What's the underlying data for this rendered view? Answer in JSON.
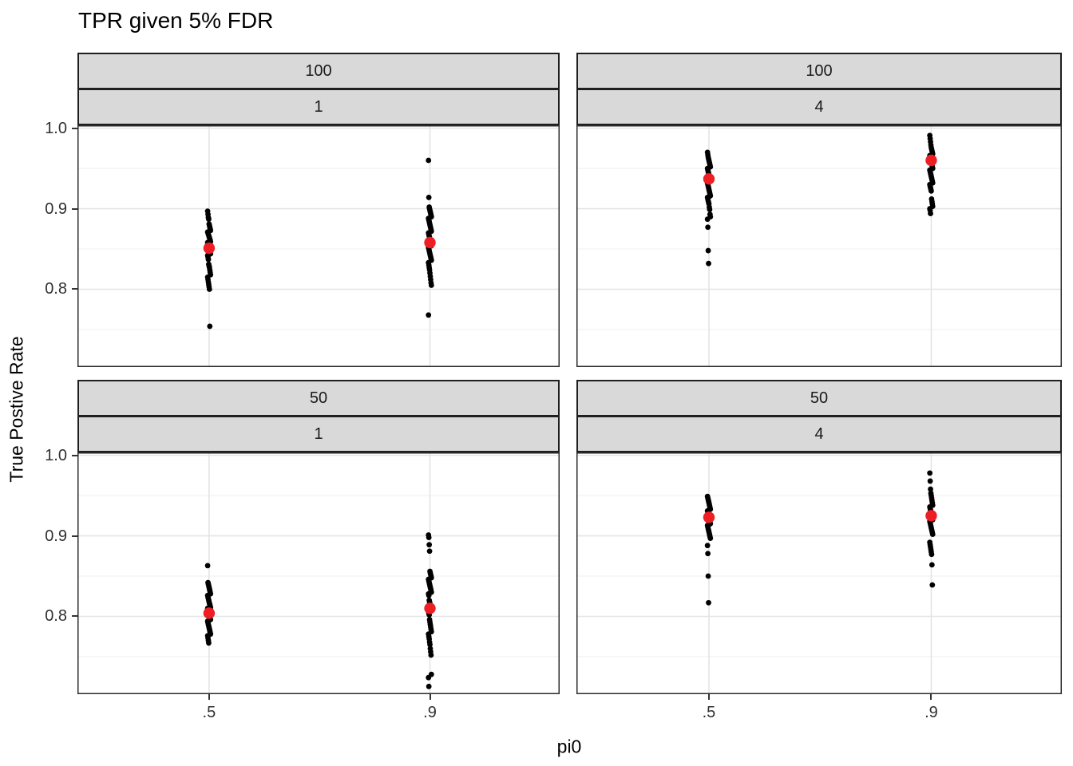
{
  "chart_data": {
    "type": "scatter",
    "title": "TPR given 5% FDR",
    "xlabel": "pi0",
    "ylabel": "True Postive Rate",
    "legend": "none",
    "grid": "horizontal major+minor, vertical major at categories",
    "point_color": "#000000",
    "mean_color": "#ed1f24",
    "strip_bg": "#d9d9d9",
    "panel_border": "#2b2b2b",
    "major_grid_color": "#e4e4e4",
    "minor_grid_color": "#f2f2f2",
    "x_axis": {
      "ticks": [
        ".5",
        ".9"
      ]
    },
    "y_axis": {
      "ticks": [
        "1.0",
        "0.9",
        "0.8"
      ],
      "tick_values": [
        1.0,
        0.9,
        0.8
      ],
      "minor_values": [
        0.95,
        0.85,
        0.75
      ],
      "ylim": [
        0.7034,
        1.0036
      ]
    },
    "facets": {
      "outer_levels": [
        "100",
        "50"
      ],
      "inner_levels": [
        "1",
        "4"
      ]
    },
    "panels": [
      {
        "facet_outer": "100",
        "facet_inner": "1",
        "row": 0,
        "col": 0,
        "means": {
          ".5": 0.851,
          ".9": 0.858
        },
        "points": {
          ".5": [
            0.897,
            0.893,
            0.889,
            0.887,
            0.881,
            0.879,
            0.877,
            0.875,
            0.873,
            0.871,
            0.87,
            0.868,
            0.867,
            0.865,
            0.864,
            0.862,
            0.861,
            0.859,
            0.858,
            0.856,
            0.855,
            0.853,
            0.852,
            0.85,
            0.848,
            0.846,
            0.844,
            0.842,
            0.84,
            0.837,
            0.831,
            0.829,
            0.827,
            0.824,
            0.821,
            0.818,
            0.815,
            0.812,
            0.809,
            0.806,
            0.803,
            0.8,
            0.754
          ],
          ".9": [
            0.96,
            0.914,
            0.902,
            0.9,
            0.898,
            0.896,
            0.894,
            0.892,
            0.89,
            0.888,
            0.886,
            0.884,
            0.882,
            0.88,
            0.878,
            0.876,
            0.874,
            0.872,
            0.87,
            0.868,
            0.866,
            0.864,
            0.862,
            0.86,
            0.858,
            0.856,
            0.854,
            0.852,
            0.85,
            0.848,
            0.846,
            0.844,
            0.842,
            0.84,
            0.838,
            0.836,
            0.833,
            0.83,
            0.827,
            0.824,
            0.82,
            0.816,
            0.812,
            0.808,
            0.805,
            0.768
          ]
        }
      },
      {
        "facet_outer": "100",
        "facet_inner": "4",
        "row": 0,
        "col": 1,
        "means": {
          ".5": 0.937,
          ".9": 0.96
        },
        "points": {
          ".5": [
            0.97,
            0.967,
            0.964,
            0.962,
            0.96,
            0.958,
            0.956,
            0.954,
            0.952,
            0.95,
            0.948,
            0.946,
            0.944,
            0.942,
            0.94,
            0.938,
            0.936,
            0.934,
            0.932,
            0.93,
            0.928,
            0.926,
            0.924,
            0.922,
            0.92,
            0.918,
            0.916,
            0.914,
            0.912,
            0.91,
            0.908,
            0.906,
            0.902,
            0.899,
            0.893,
            0.89,
            0.887,
            0.877,
            0.848,
            0.832
          ],
          ".9": [
            0.991,
            0.987,
            0.983,
            0.979,
            0.976,
            0.974,
            0.972,
            0.97,
            0.968,
            0.966,
            0.964,
            0.962,
            0.96,
            0.958,
            0.956,
            0.954,
            0.952,
            0.95,
            0.948,
            0.946,
            0.944,
            0.942,
            0.94,
            0.938,
            0.936,
            0.934,
            0.932,
            0.93,
            0.928,
            0.926,
            0.924,
            0.922,
            0.912,
            0.909,
            0.906,
            0.903,
            0.9,
            0.898,
            0.894
          ]
        }
      },
      {
        "facet_outer": "50",
        "facet_inner": "1",
        "row": 1,
        "col": 0,
        "means": {
          ".5": 0.804,
          ".9": 0.81
        },
        "points": {
          ".5": [
            0.863,
            0.842,
            0.84,
            0.838,
            0.836,
            0.834,
            0.832,
            0.83,
            0.828,
            0.826,
            0.824,
            0.822,
            0.82,
            0.818,
            0.816,
            0.815,
            0.813,
            0.811,
            0.81,
            0.808,
            0.806,
            0.805,
            0.803,
            0.801,
            0.8,
            0.798,
            0.796,
            0.794,
            0.792,
            0.79,
            0.788,
            0.786,
            0.784,
            0.782,
            0.78,
            0.778,
            0.776,
            0.773,
            0.77,
            0.767
          ],
          ".9": [
            0.901,
            0.898,
            0.889,
            0.881,
            0.856,
            0.854,
            0.852,
            0.85,
            0.848,
            0.846,
            0.844,
            0.842,
            0.84,
            0.838,
            0.836,
            0.834,
            0.832,
            0.83,
            0.828,
            0.826,
            0.82,
            0.818,
            0.816,
            0.814,
            0.812,
            0.81,
            0.808,
            0.806,
            0.804,
            0.802,
            0.796,
            0.793,
            0.79,
            0.787,
            0.784,
            0.781,
            0.778,
            0.775,
            0.772,
            0.768,
            0.765,
            0.76,
            0.756,
            0.752,
            0.728,
            0.724,
            0.713
          ]
        }
      },
      {
        "facet_outer": "50",
        "facet_inner": "4",
        "row": 1,
        "col": 1,
        "means": {
          ".5": 0.923,
          ".9": 0.925
        },
        "points": {
          ".5": [
            0.949,
            0.947,
            0.945,
            0.943,
            0.941,
            0.939,
            0.937,
            0.935,
            0.933,
            0.931,
            0.929,
            0.927,
            0.925,
            0.923,
            0.921,
            0.919,
            0.917,
            0.915,
            0.913,
            0.911,
            0.909,
            0.907,
            0.905,
            0.903,
            0.901,
            0.899,
            0.897,
            0.888,
            0.878,
            0.85,
            0.817
          ],
          ".9": [
            0.978,
            0.968,
            0.958,
            0.953,
            0.95,
            0.947,
            0.944,
            0.941,
            0.938,
            0.936,
            0.934,
            0.932,
            0.93,
            0.928,
            0.926,
            0.924,
            0.922,
            0.92,
            0.918,
            0.916,
            0.914,
            0.912,
            0.91,
            0.908,
            0.906,
            0.904,
            0.902,
            0.892,
            0.889,
            0.886,
            0.883,
            0.88,
            0.877,
            0.864,
            0.839
          ]
        }
      }
    ]
  }
}
